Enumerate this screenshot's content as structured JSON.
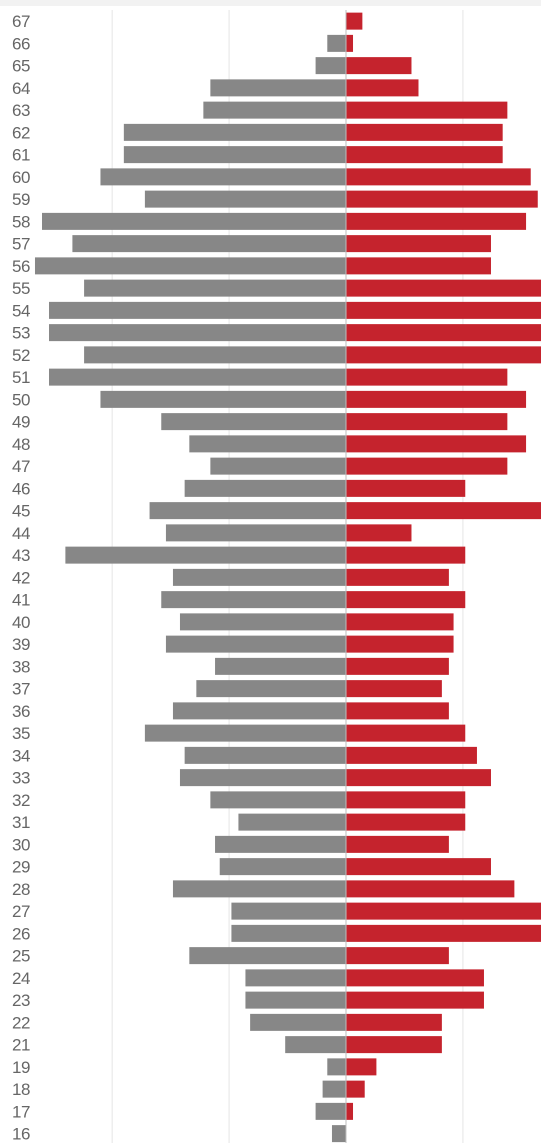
{
  "chart_data": {
    "type": "bar",
    "orientation": "horizontal-diverging",
    "title": "",
    "xlabel": "",
    "ylabel": "",
    "grid": true,
    "legend": "none",
    "colors": {
      "left": "#878787",
      "right": "#c5232d",
      "grid": "#e6e6e6",
      "label": "#666666"
    },
    "xlim": [
      -13,
      9.5
    ],
    "categories": [
      "67",
      "66",
      "65",
      "64",
      "63",
      "62",
      "61",
      "60",
      "59",
      "58",
      "57",
      "56",
      "55",
      "54",
      "53",
      "52",
      "51",
      "50",
      "49",
      "48",
      "47",
      "46",
      "45",
      "44",
      "43",
      "42",
      "41",
      "40",
      "39",
      "38",
      "37",
      "36",
      "35",
      "34",
      "33",
      "32",
      "31",
      "30",
      "29",
      "28",
      "27",
      "26",
      "25",
      "24",
      "23",
      "22",
      "21",
      "19",
      "18",
      "17",
      "16"
    ],
    "series": [
      {
        "side": "left",
        "values": [
          0,
          0.8,
          1.3,
          5.8,
          6.1,
          9.5,
          9.5,
          10.5,
          8.6,
          13,
          11.7,
          13.3,
          11.2,
          12.7,
          12.7,
          11.2,
          12.7,
          10.5,
          7.9,
          6.7,
          5.8,
          6.9,
          8.4,
          7.7,
          12,
          7.4,
          7.9,
          7.1,
          7.7,
          5.6,
          6.4,
          7.4,
          8.6,
          6.9,
          7.1,
          5.8,
          4.6,
          5.6,
          5.4,
          7.4,
          4.9,
          4.9,
          6.7,
          4.3,
          4.3,
          4.1,
          2.6,
          0.8,
          1,
          1.3,
          0.6
        ]
      },
      {
        "side": "right",
        "values": [
          0.7,
          0.3,
          2.8,
          3.1,
          6.9,
          6.7,
          6.7,
          7.9,
          8.2,
          7.7,
          6.2,
          6.2,
          9.5,
          9.2,
          9.5,
          9.5,
          6.9,
          7.7,
          6.9,
          7.7,
          6.9,
          5.1,
          8.4,
          2.8,
          5.1,
          4.4,
          5.1,
          4.6,
          4.6,
          4.4,
          4.1,
          4.4,
          5.1,
          5.6,
          6.2,
          5.1,
          5.1,
          4.4,
          6.2,
          7.2,
          9,
          9,
          4.4,
          5.9,
          5.9,
          4.1,
          4.1,
          1.3,
          0.8,
          0.3,
          0
        ]
      }
    ]
  }
}
